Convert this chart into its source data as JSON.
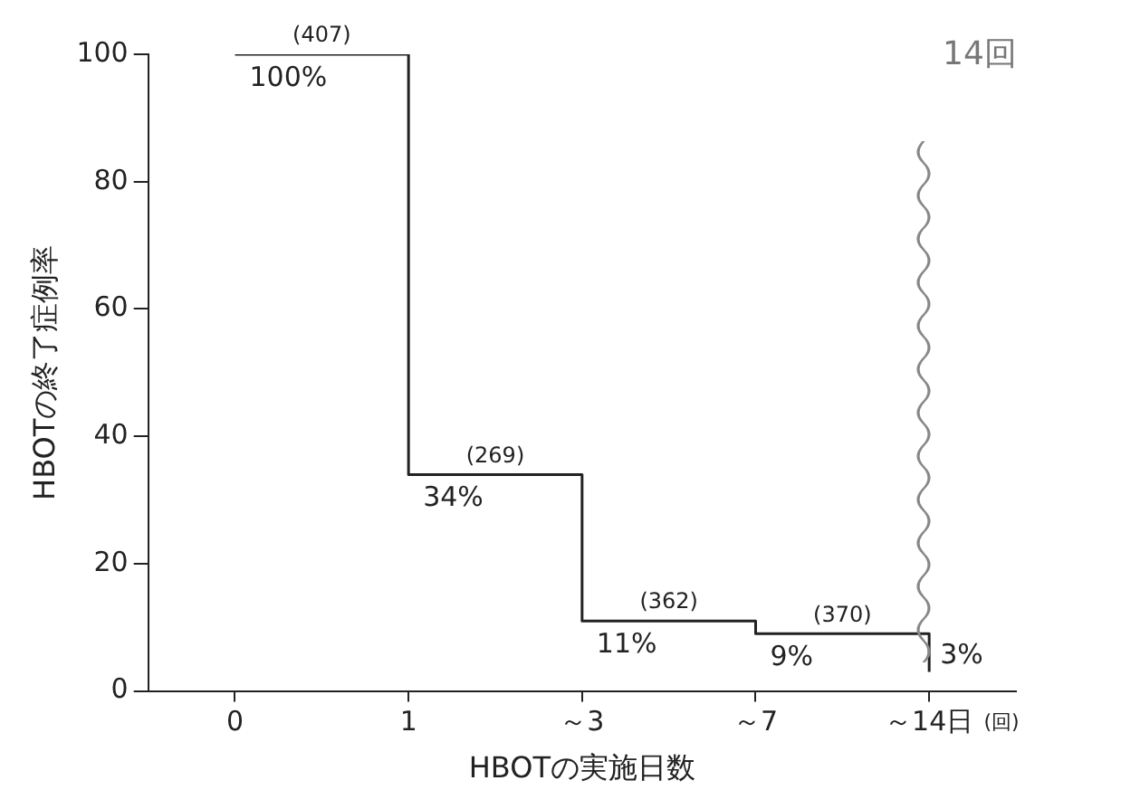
{
  "chart_data": {
    "type": "step",
    "xlabel": "HBOTの実施日数",
    "ylabel": "HBOTの終了症例率",
    "categories": [
      "0",
      "1",
      "～3",
      "～7",
      "～14日"
    ],
    "values": [
      100,
      34,
      11,
      9,
      3
    ],
    "value_labels": [
      "100%",
      "34%",
      "11%",
      "9%",
      "3%"
    ],
    "color": "#222222",
    "marker": "none",
    "grid": false,
    "legend": false,
    "ylim": [
      0,
      100
    ],
    "yticks": [
      0,
      20,
      40,
      60,
      80,
      100
    ],
    "annotations": [
      {
        "text": "(407)",
        "x": "0",
        "y": 100
      },
      {
        "text": "(269)",
        "x": "1",
        "y": 34
      },
      {
        "text": "(362)",
        "x": "～3",
        "y": 11
      },
      {
        "text": "(370)",
        "x": "～7",
        "y": 9
      },
      "14回",
      "(回)"
    ]
  }
}
